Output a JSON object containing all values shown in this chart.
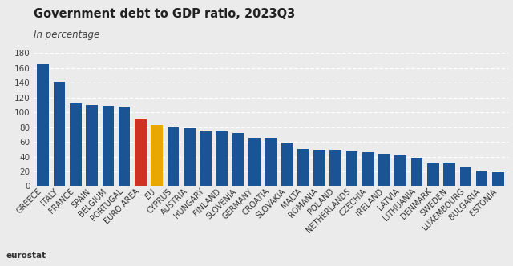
{
  "title": "Government debt to GDP ratio, 2023Q3",
  "subtitle": "In percentage",
  "categories": [
    "GREECE",
    "ITALY",
    "FRANCE",
    "SPAIN",
    "BELGIUM",
    "PORTUGAL",
    "EURO AREA",
    "EU",
    "CYPRUS",
    "AUSTRIA",
    "HUNGARY",
    "FINLAND",
    "SLOVENIA",
    "GERMANY",
    "CROATIA",
    "SLOVAKIA",
    "MALTA",
    "ROMANIA",
    "POLAND",
    "NETHERLANDS",
    "CZECHIA",
    "IRELAND",
    "LATVIA",
    "LITHUANIA",
    "DENMARK",
    "SWEDEN",
    "LUXEMBOURG",
    "BULGARIA",
    "ESTONIA"
  ],
  "values": [
    165.0,
    141.0,
    112.5,
    110.0,
    108.5,
    108.0,
    90.5,
    83.0,
    80.0,
    78.5,
    75.0,
    74.5,
    71.5,
    65.5,
    65.0,
    59.0,
    50.5,
    49.5,
    49.5,
    47.0,
    45.5,
    44.0,
    42.0,
    38.0,
    30.5,
    30.5,
    26.0,
    21.0,
    18.5
  ],
  "bar_colors": [
    "#1a5494",
    "#1a5494",
    "#1a5494",
    "#1a5494",
    "#1a5494",
    "#1a5494",
    "#cc3322",
    "#e8a800",
    "#1a5494",
    "#1a5494",
    "#1a5494",
    "#1a5494",
    "#1a5494",
    "#1a5494",
    "#1a5494",
    "#1a5494",
    "#1a5494",
    "#1a5494",
    "#1a5494",
    "#1a5494",
    "#1a5494",
    "#1a5494",
    "#1a5494",
    "#1a5494",
    "#1a5494",
    "#1a5494",
    "#1a5494",
    "#1a5494",
    "#1a5494"
  ],
  "ylim": [
    0,
    180
  ],
  "yticks": [
    0,
    20,
    40,
    60,
    80,
    100,
    120,
    140,
    160,
    180
  ],
  "background_color": "#ebebeb",
  "plot_bg_color": "#ebebeb",
  "grid_color": "#ffffff",
  "title_fontsize": 10.5,
  "subtitle_fontsize": 8.5,
  "tick_fontsize": 7.0,
  "ytick_fontsize": 7.5
}
